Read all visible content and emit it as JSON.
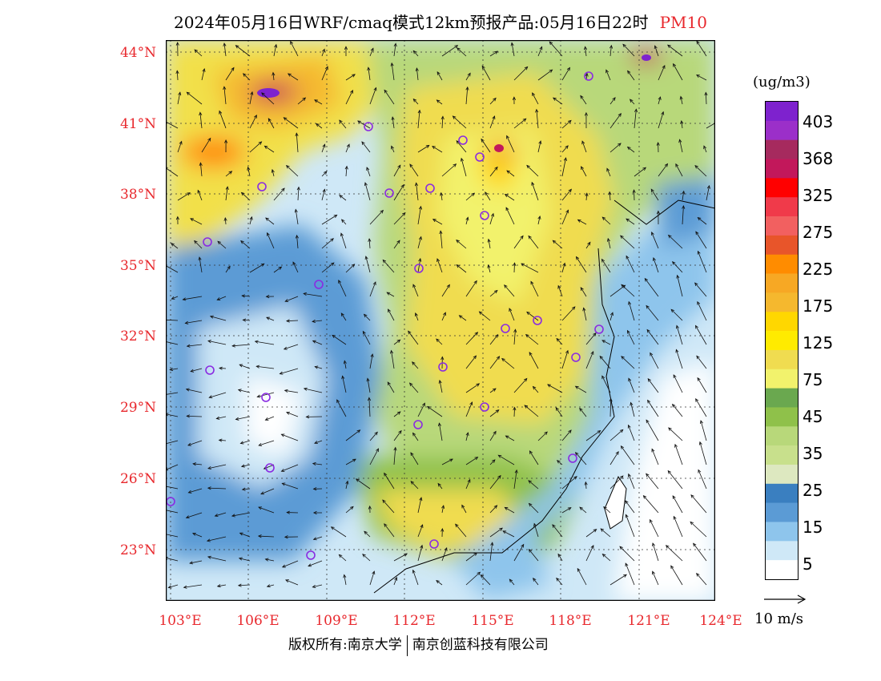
{
  "title": {
    "main": "2024年05月16日WRF/cmaq模式12km预报产品:05月16日22时",
    "pollutant": "PM10"
  },
  "map": {
    "lat_labels": [
      "44°N",
      "41°N",
      "38°N",
      "35°N",
      "32°N",
      "29°N",
      "26°N",
      "23°N"
    ],
    "lon_labels": [
      "103°E",
      "106°E",
      "109°E",
      "112°E",
      "115°E",
      "118°E",
      "121°E",
      "124°E"
    ]
  },
  "colorbar": {
    "unit": "(ug/m3)",
    "labels": [
      "403",
      "368",
      "325",
      "275",
      "225",
      "175",
      "125",
      "75",
      "45",
      "35",
      "25",
      "15",
      "5"
    ],
    "colors": [
      "#7e22ce",
      "#9b2fc9",
      "#a62a5e",
      "#c2185b",
      "#ff0000",
      "#f03a4a",
      "#f26060",
      "#e8552a",
      "#ff8c00",
      "#f7a824",
      "#f5b82e",
      "#ffd700",
      "#ffeb00",
      "#f0dc50",
      "#f2f26c",
      "#6aa84f",
      "#8fc14a",
      "#b8d87a",
      "#c8e08c",
      "#dde8c0",
      "#3a7fc0",
      "#5b9bd5",
      "#8ec5ec",
      "#cfe8f7",
      "#ffffff"
    ]
  },
  "wind_legend": {
    "label": "10 m/s"
  },
  "copyright": {
    "left": "版权所有:南京大学",
    "right": "南京创蓝科技有限公司"
  }
}
